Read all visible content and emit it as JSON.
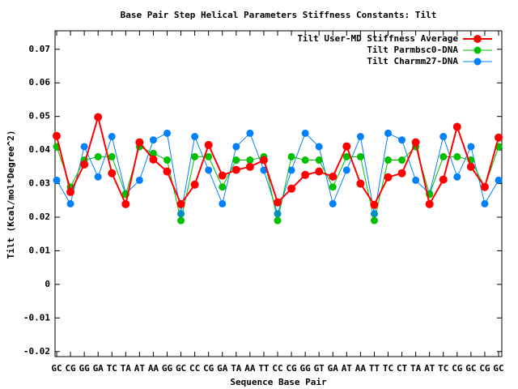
{
  "chart_data": {
    "type": "line",
    "title": "Base Pair Step Helical Parameters Stiffness Constants: Tilt",
    "xlabel": "Sequence Base Pair",
    "ylabel": "Tilt (Kcal/mol*Degree^2)",
    "categories": [
      "GC",
      "CG",
      "GG",
      "GA",
      "TC",
      "TA",
      "AT",
      "AA",
      "GG",
      "GC",
      "CC",
      "CG",
      "GA",
      "TA",
      "AA",
      "TT",
      "CC",
      "CG",
      "GG",
      "GT",
      "GA",
      "AT",
      "AA",
      "TT",
      "TC",
      "CT",
      "TA",
      "AT",
      "TC",
      "CG",
      "GC",
      "CG",
      "GC"
    ],
    "series": [
      {
        "name": "Tilt User-MD Stiffness Average",
        "color": "#ff0000",
        "values": [
          0.0442,
          0.0275,
          0.0357,
          0.0498,
          0.0331,
          0.0239,
          0.0423,
          0.0372,
          0.0336,
          0.0239,
          0.0297,
          0.0415,
          0.0324,
          0.0341,
          0.035,
          0.037,
          0.0244,
          0.0285,
          0.0326,
          0.0336,
          0.0321,
          0.0411,
          0.03,
          0.0237,
          0.0319,
          0.0331,
          0.0423,
          0.0239,
          0.0312,
          0.0469,
          0.035,
          0.029,
          0.0437
        ]
      },
      {
        "name": "Tilt Parmbsc0-DNA",
        "color": "#00c000",
        "values": [
          0.041,
          0.029,
          0.037,
          0.038,
          0.038,
          0.0268,
          0.041,
          0.039,
          0.037,
          0.019,
          0.038,
          0.038,
          0.029,
          0.037,
          0.037,
          0.038,
          0.019,
          0.038,
          0.037,
          0.037,
          0.029,
          0.038,
          0.038,
          0.019,
          0.037,
          0.037,
          0.041,
          0.0268,
          0.038,
          0.038,
          0.037,
          0.029,
          0.041
        ]
      },
      {
        "name": "Tilt Charmm27-DNA",
        "color": "#0080ff",
        "values": [
          0.031,
          0.024,
          0.041,
          0.032,
          0.044,
          0.027,
          0.031,
          0.043,
          0.045,
          0.021,
          0.044,
          0.034,
          0.024,
          0.041,
          0.045,
          0.034,
          0.021,
          0.034,
          0.045,
          0.041,
          0.024,
          0.034,
          0.044,
          0.021,
          0.045,
          0.043,
          0.031,
          0.027,
          0.044,
          0.032,
          0.041,
          0.024,
          0.031
        ]
      }
    ],
    "ylim": [
      -0.0215,
      0.0755
    ],
    "yticks": [
      -0.02,
      -0.01,
      0,
      0.01,
      0.02,
      0.03,
      0.04,
      0.05,
      0.06,
      0.07
    ],
    "legend": "upper-right"
  }
}
